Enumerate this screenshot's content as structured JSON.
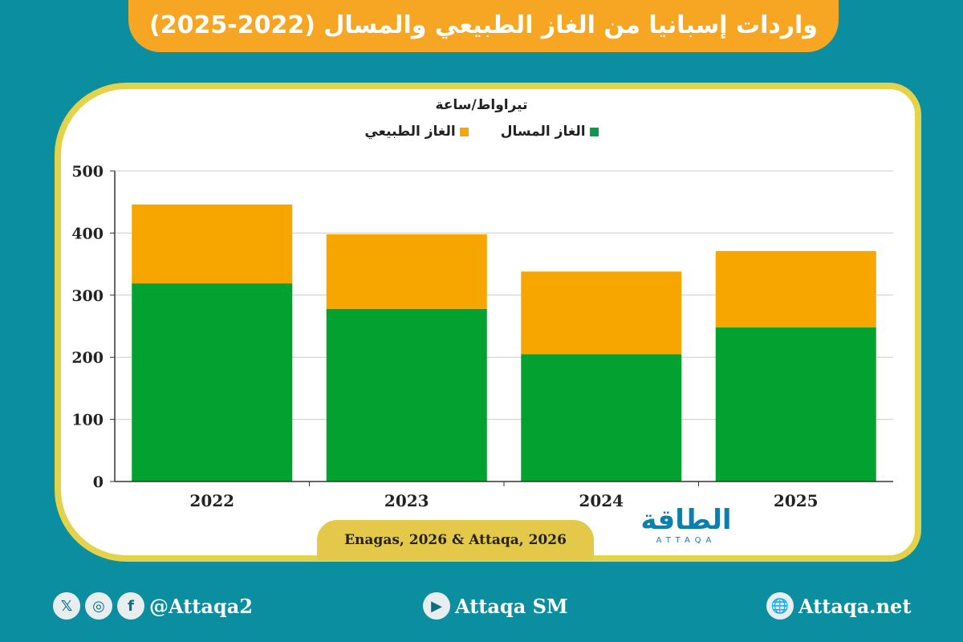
{
  "title": "واردات إسبانيا من الغاز الطبيعي والمسال (2022-2025)",
  "chart_data": {
    "type": "bar",
    "stacked": true,
    "ylabel": "تيراواط/ساعة",
    "categories": [
      "2022",
      "2023",
      "2024",
      "2025"
    ],
    "series": [
      {
        "name": "الغاز المسال",
        "color": "#03a12f",
        "values": [
          319,
          278,
          205,
          248
        ]
      },
      {
        "name": "الغاز الطبيعي",
        "color": "#f7a600",
        "values": [
          127,
          120,
          133,
          123
        ]
      }
    ],
    "ylim": [
      0,
      500
    ],
    "yticks": [
      "0",
      "100",
      "200",
      "300",
      "400",
      "500"
    ],
    "grid": true,
    "legend": "top-center"
  },
  "source": "Enagas, 2026 & Attaqa, 2026",
  "logo": {
    "text": "الطاقة",
    "sub": "ATTAQA"
  },
  "footer": {
    "social_handle": "@Attaqa2",
    "youtube": "Attaqa SM",
    "website": "Attaqa.net"
  }
}
